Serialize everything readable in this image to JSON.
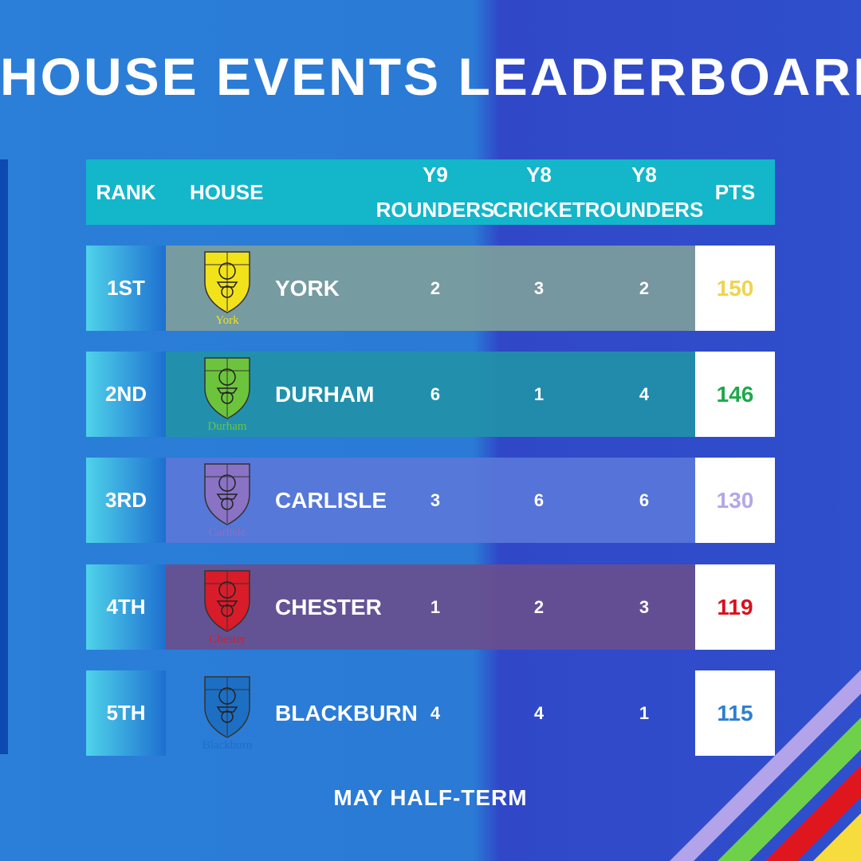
{
  "title": "HOUSE EVENTS LEADERBOARD",
  "table": {
    "headers": [
      "RANK",
      "HOUSE",
      "Y9 ROUNDERS",
      "Y8 CRICKET",
      "Y8 ROUNDERS",
      "PTS"
    ],
    "rows": [
      {
        "rank": "1ST",
        "house": "YORK",
        "crest_label": "York",
        "scores": [
          2,
          3,
          2
        ],
        "pts": 150,
        "pts_color": "#f0d44c",
        "band_color": "#7e9f9b",
        "crest_color": "#f2e21a"
      },
      {
        "rank": "2ND",
        "house": "DURHAM",
        "crest_label": "Durham",
        "scores": [
          6,
          1,
          4
        ],
        "pts": 146,
        "pts_color": "#1fa84a",
        "band_color": "#2192a8",
        "crest_color": "#6cc43c"
      },
      {
        "rank": "3RD",
        "house": "CARLISLE",
        "crest_label": "Carlisle",
        "scores": [
          3,
          6,
          6
        ],
        "pts": 130,
        "pts_color": "#b4a7e8",
        "band_color": "#5a78d9",
        "crest_color": "#8a72c4"
      },
      {
        "rank": "4TH",
        "house": "CHESTER",
        "crest_label": "Chester",
        "scores": [
          1,
          2,
          3
        ],
        "pts": 119,
        "pts_color": "#d7111c",
        "band_color": "#6a4f8d",
        "crest_color": "#d81c2a"
      },
      {
        "rank": "5TH",
        "house": "BLACKBURN",
        "crest_label": "Blackburn",
        "scores": [
          4,
          4,
          1
        ],
        "pts": 115,
        "pts_color": "#2e7fd0",
        "band_color": "#2a7fd6",
        "crest_color": "#1d6fc4"
      }
    ]
  },
  "footer": "MAY HALF-TERM"
}
